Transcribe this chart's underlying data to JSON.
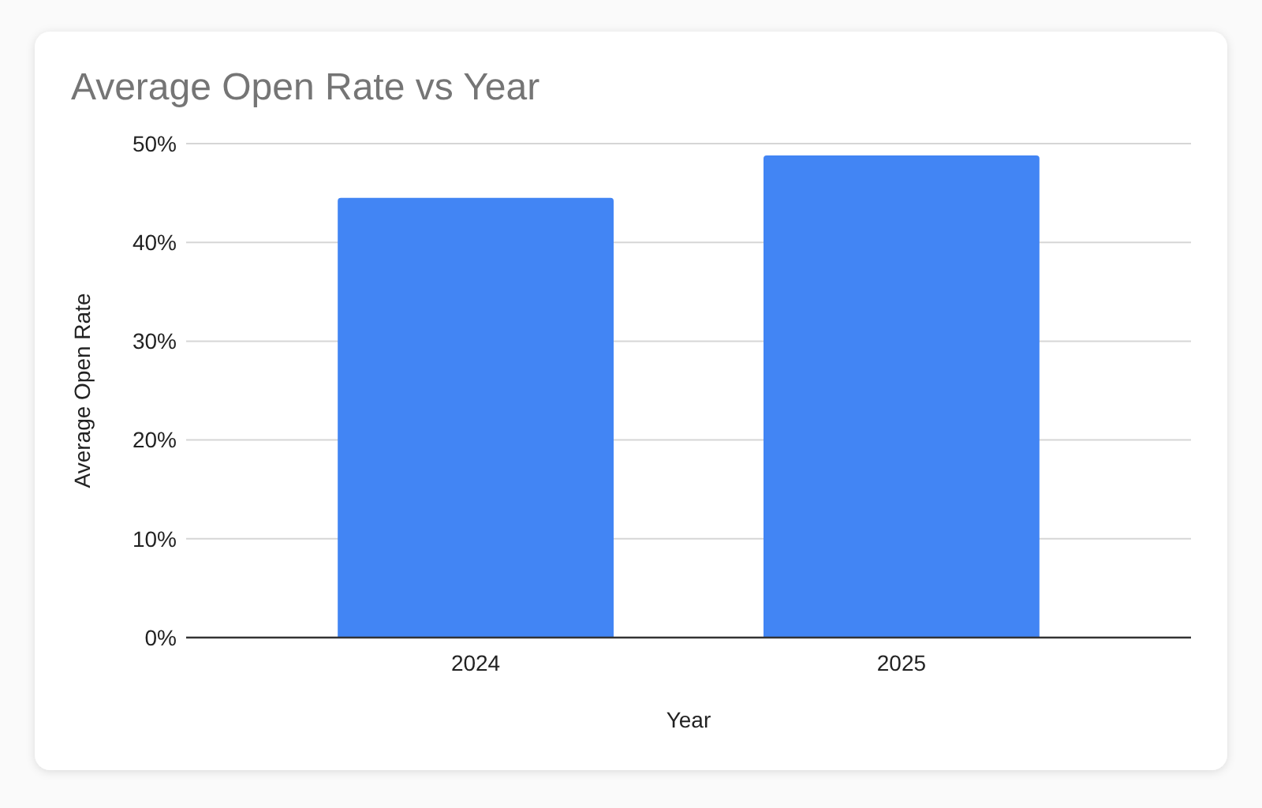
{
  "chart_data": {
    "type": "bar",
    "title": "Average Open Rate vs Year",
    "xlabel": "Year",
    "ylabel": "Average Open Rate",
    "categories": [
      "2024",
      "2025"
    ],
    "values": [
      44.5,
      48.8
    ],
    "color": "#4285f4",
    "ylim": [
      0,
      50
    ],
    "yticks": [
      {
        "value": 0,
        "label": "0%"
      },
      {
        "value": 10,
        "label": "10%"
      },
      {
        "value": 20,
        "label": "20%"
      },
      {
        "value": 30,
        "label": "30%"
      },
      {
        "value": 40,
        "label": "40%"
      },
      {
        "value": 50,
        "label": "50%"
      }
    ],
    "grid": "y"
  }
}
